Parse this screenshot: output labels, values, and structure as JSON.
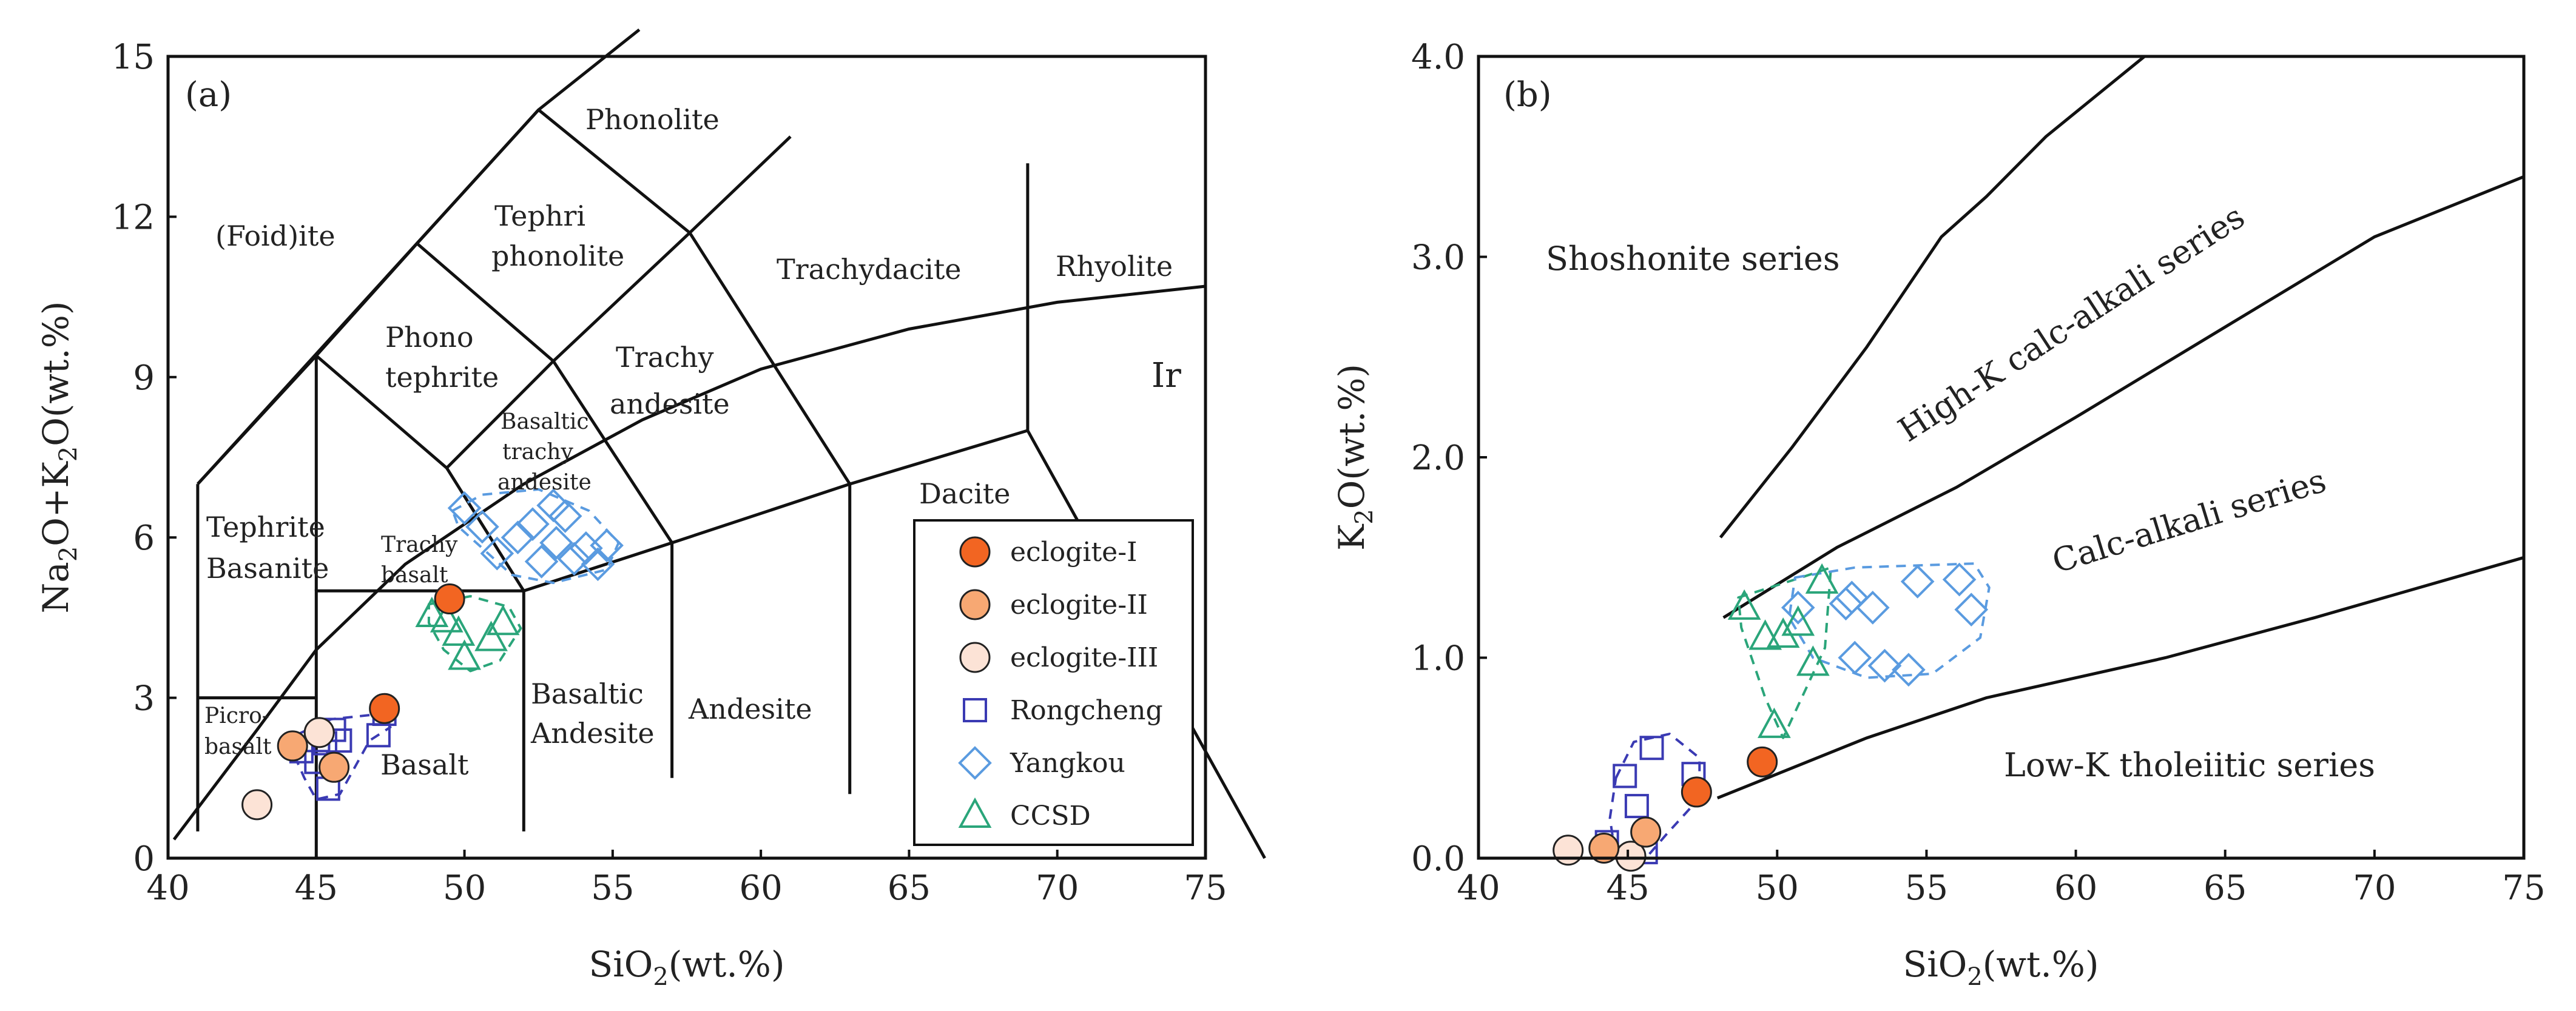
{
  "chart_data": [
    {
      "panel": "(a)",
      "type": "scatter",
      "title": "",
      "xlabel": "SiO2(wt.%)",
      "ylabel": "Na2O+K2O(wt.%)",
      "xlim": [
        40,
        75
      ],
      "ylim": [
        0,
        15
      ],
      "xticks": [
        40,
        45,
        50,
        55,
        60,
        65,
        70,
        75
      ],
      "yticks": [
        0,
        3,
        6,
        9,
        12,
        15
      ],
      "field_labels": {
        "foidite": "(Foid)ite",
        "phonolite": "Phonolite",
        "tephriphonolite_1": "Tephri",
        "tephriphonolite_2": "phonolite",
        "trachydacite": "Trachydacite",
        "rhyolite": "Rhyolite",
        "phonotephrite_1": "Phono",
        "phonotephrite_2": "tephrite",
        "trachyandesite_1": "Trachy",
        "trachyandesite_2": "andesite",
        "ir": "Ir",
        "bta_1": "Basaltic",
        "bta_2": "trachy",
        "bta_3": "andesite",
        "dacite": "Dacite",
        "tephrite_1": "Tephrite",
        "tephrite_2": "Basanite",
        "trachybasalt_1": "Trachy",
        "trachybasalt_2": "basalt",
        "ba_1": "Basaltic",
        "ba_2": "Andesite",
        "andesite": "Andesite",
        "picro_1": "Picro-",
        "picro_2": "basalt",
        "basalt": "Basalt"
      },
      "legend": {
        "location": "lower-right",
        "entries": [
          {
            "name": "eclogite-I",
            "marker": "circle",
            "fill": "#F26522",
            "stroke": "#222222"
          },
          {
            "name": "eclogite-II",
            "marker": "circle",
            "fill": "#F7A873",
            "stroke": "#222222"
          },
          {
            "name": "eclogite-III",
            "marker": "circle",
            "fill": "#FCE3D6",
            "stroke": "#222222"
          },
          {
            "name": "Rongcheng",
            "marker": "square",
            "fill": "none",
            "stroke": "#3A3AB3"
          },
          {
            "name": "Yangkou",
            "marker": "diamond",
            "fill": "none",
            "stroke": "#5A9BE0"
          },
          {
            "name": "CCSD",
            "marker": "triangle",
            "fill": "none",
            "stroke": "#2AA57A"
          }
        ]
      },
      "series": [
        {
          "name": "eclogite-I",
          "points": [
            [
              49.5,
              4.85
            ],
            [
              47.3,
              2.8
            ]
          ]
        },
        {
          "name": "eclogite-II",
          "points": [
            [
              44.2,
              2.1
            ],
            [
              45.6,
              1.7
            ]
          ]
        },
        {
          "name": "eclogite-III",
          "points": [
            [
              43.0,
              1.0
            ],
            [
              45.1,
              2.35
            ]
          ]
        },
        {
          "name": "Rongcheng",
          "points": [
            [
              44.5,
              2.0
            ],
            [
              45.0,
              1.8
            ],
            [
              45.3,
              2.15
            ],
            [
              45.6,
              2.4
            ],
            [
              45.8,
              2.2
            ],
            [
              45.4,
              1.3
            ],
            [
              47.1,
              2.3
            ],
            [
              47.3,
              2.7
            ]
          ]
        },
        {
          "name": "Yangkou",
          "points": [
            [
              50.0,
              6.55
            ],
            [
              50.6,
              6.2
            ],
            [
              51.1,
              5.7
            ],
            [
              51.8,
              6.0
            ],
            [
              52.3,
              6.25
            ],
            [
              52.6,
              5.55
            ],
            [
              53.0,
              6.6
            ],
            [
              53.4,
              6.4
            ],
            [
              53.1,
              5.9
            ],
            [
              53.7,
              5.6
            ],
            [
              54.1,
              5.8
            ],
            [
              54.5,
              5.5
            ],
            [
              54.8,
              5.85
            ]
          ]
        },
        {
          "name": "CCSD",
          "points": [
            [
              48.9,
              4.55
            ],
            [
              49.4,
              4.45
            ],
            [
              49.8,
              4.2
            ],
            [
              50.0,
              3.75
            ],
            [
              50.9,
              4.1
            ],
            [
              51.3,
              4.4
            ]
          ]
        }
      ],
      "envelopes": [
        {
          "name": "Rongcheng",
          "color": "#3A3AB3",
          "outline": [
            [
              44.3,
              2.3
            ],
            [
              45.5,
              2.6
            ],
            [
              47.2,
              2.7
            ],
            [
              47.5,
              2.45
            ],
            [
              46.8,
              2.2
            ],
            [
              45.8,
              1.2
            ],
            [
              45.0,
              1.1
            ],
            [
              44.6,
              1.5
            ],
            [
              44.2,
              2.0
            ]
          ]
        },
        {
          "name": "Yangkou",
          "color": "#5A9BE0",
          "outline": [
            [
              49.6,
              6.5
            ],
            [
              50.6,
              6.8
            ],
            [
              52.5,
              6.9
            ],
            [
              54.2,
              6.5
            ],
            [
              55.2,
              5.9
            ],
            [
              54.8,
              5.4
            ],
            [
              53.0,
              5.15
            ],
            [
              51.6,
              5.3
            ],
            [
              50.6,
              5.8
            ],
            [
              49.8,
              6.2
            ]
          ]
        },
        {
          "name": "CCSD",
          "color": "#2AA57A",
          "outline": [
            [
              48.8,
              4.75
            ],
            [
              50.2,
              4.9
            ],
            [
              51.5,
              4.7
            ],
            [
              51.9,
              4.3
            ],
            [
              51.2,
              3.7
            ],
            [
              50.2,
              3.5
            ],
            [
              49.3,
              3.9
            ],
            [
              48.8,
              4.4
            ]
          ]
        }
      ]
    },
    {
      "panel": "(b)",
      "type": "scatter",
      "title": "",
      "xlabel": "SiO2(wt.%)",
      "ylabel": "K2O(wt.%)",
      "xlim": [
        40,
        75
      ],
      "ylim": [
        0,
        4.0
      ],
      "xticks": [
        40,
        45,
        50,
        55,
        60,
        65,
        70,
        75
      ],
      "yticks": [
        0.0,
        1.0,
        2.0,
        3.0,
        4.0
      ],
      "series_labels": {
        "shoshonite": "Shoshonite series",
        "highk": "High-K calc-alkali series",
        "calcalkali": "Calc-alkali series",
        "lowk": "Low-K tholeiitic series"
      },
      "series": [
        {
          "name": "eclogite-I",
          "points": [
            [
              49.5,
              0.48
            ],
            [
              47.3,
              0.33
            ]
          ]
        },
        {
          "name": "eclogite-II",
          "points": [
            [
              44.2,
              0.05
            ],
            [
              45.6,
              0.13
            ]
          ]
        },
        {
          "name": "eclogite-III",
          "points": [
            [
              43.0,
              0.04
            ],
            [
              45.1,
              0.01
            ]
          ]
        },
        {
          "name": "Rongcheng",
          "points": [
            [
              45.8,
              0.55
            ],
            [
              44.9,
              0.41
            ],
            [
              47.2,
              0.42
            ],
            [
              45.3,
              0.26
            ],
            [
              44.3,
              0.08
            ],
            [
              45.6,
              0.03
            ]
          ]
        },
        {
          "name": "Yangkou",
          "points": [
            [
              50.7,
              1.25
            ],
            [
              52.3,
              1.27
            ],
            [
              52.5,
              1.3
            ],
            [
              53.2,
              1.25
            ],
            [
              52.6,
              1.0
            ],
            [
              53.6,
              0.96
            ],
            [
              54.4,
              0.94
            ],
            [
              54.7,
              1.38
            ],
            [
              56.1,
              1.39
            ],
            [
              56.5,
              1.24
            ]
          ]
        },
        {
          "name": "CCSD",
          "points": [
            [
              48.9,
              1.25
            ],
            [
              49.6,
              1.1
            ],
            [
              50.2,
              1.11
            ],
            [
              50.7,
              1.17
            ],
            [
              51.5,
              1.38
            ],
            [
              51.2,
              0.97
            ],
            [
              49.9,
              0.66
            ]
          ]
        }
      ],
      "envelopes": [
        {
          "name": "Rongcheng",
          "color": "#3A3AB3",
          "outline": [
            [
              44.6,
              0.4
            ],
            [
              45.2,
              0.58
            ],
            [
              46.4,
              0.62
            ],
            [
              47.4,
              0.5
            ],
            [
              47.4,
              0.3
            ],
            [
              46.3,
              0.12
            ],
            [
              45.6,
              0.0
            ],
            [
              44.6,
              0.0
            ],
            [
              44.4,
              0.2
            ]
          ]
        },
        {
          "name": "CCSD",
          "color": "#2AA57A",
          "outline": [
            [
              48.7,
              1.3
            ],
            [
              50.8,
              1.4
            ],
            [
              51.8,
              1.45
            ],
            [
              51.6,
              1.05
            ],
            [
              50.2,
              0.6
            ],
            [
              49.6,
              0.8
            ],
            [
              48.8,
              1.15
            ]
          ]
        },
        {
          "name": "Yangkou",
          "color": "#5A9BE0",
          "outline": [
            [
              50.6,
              1.4
            ],
            [
              52.6,
              1.45
            ],
            [
              56.6,
              1.47
            ],
            [
              57.1,
              1.35
            ],
            [
              56.8,
              1.1
            ],
            [
              55.2,
              0.92
            ],
            [
              53.0,
              0.9
            ],
            [
              51.2,
              1.0
            ],
            [
              50.4,
              1.2
            ]
          ]
        }
      ]
    }
  ]
}
